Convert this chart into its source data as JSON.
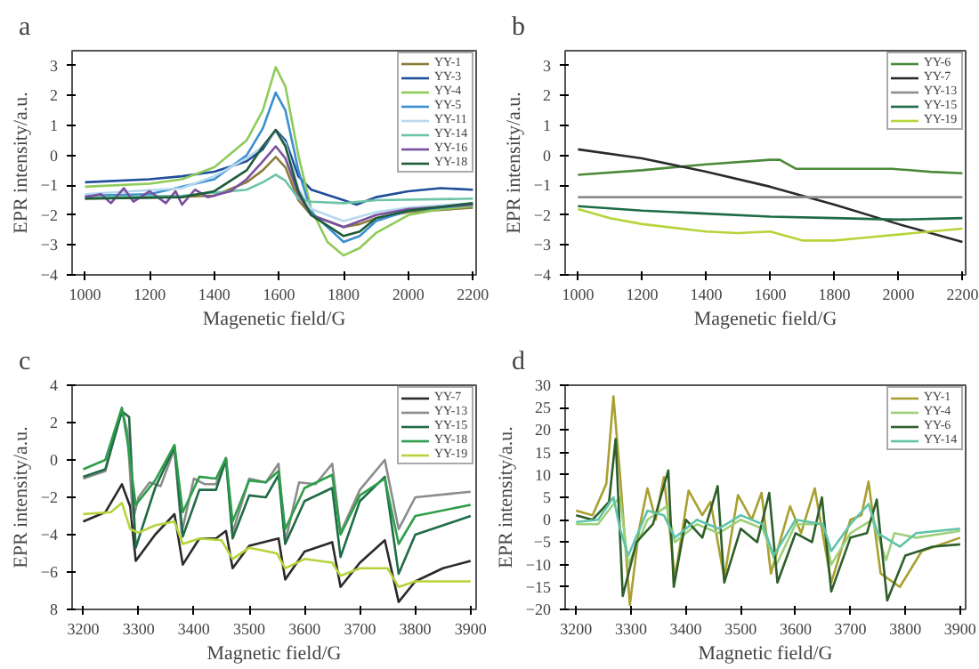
{
  "chart_data": [
    {
      "type": "line",
      "title": "a",
      "xlabel": "Magenetic field/G",
      "ylabel": "EPR intensity/a.u.",
      "xlim": [
        960,
        2210
      ],
      "xticks": [
        1000,
        1200,
        1400,
        1600,
        1800,
        2000,
        2200
      ],
      "ylim": [
        -4,
        3.5
      ],
      "yticks": [
        -4,
        -3,
        -2,
        -1,
        0,
        1,
        2,
        3
      ],
      "grid": false,
      "legend": "top right",
      "series": [
        {
          "name": "YY-1",
          "color": "#8b7d3a",
          "x": [
            1000,
            1200,
            1400,
            1500,
            1550,
            1590,
            1620,
            1660,
            1700,
            1800,
            1850,
            1900,
            2000,
            2200
          ],
          "values": [
            -1.45,
            -1.42,
            -1.35,
            -0.9,
            -0.5,
            -0.05,
            -0.4,
            -1.5,
            -2.0,
            -2.4,
            -2.3,
            -2.1,
            -1.9,
            -1.75
          ]
        },
        {
          "name": "YY-3",
          "color": "#1f4e9a",
          "x": [
            1000,
            1200,
            1300,
            1400,
            1500,
            1550,
            1590,
            1620,
            1660,
            1700,
            1800,
            1840,
            1900,
            2000,
            2100,
            2200
          ],
          "values": [
            -0.9,
            -0.8,
            -0.7,
            -0.55,
            -0.2,
            0.2,
            0.85,
            0.5,
            -0.7,
            -1.15,
            -1.5,
            -1.65,
            -1.4,
            -1.2,
            -1.1,
            -1.15
          ]
        },
        {
          "name": "YY-4",
          "color": "#8fca5a",
          "x": [
            1000,
            1200,
            1300,
            1400,
            1500,
            1550,
            1590,
            1620,
            1660,
            1700,
            1750,
            1800,
            1850,
            1900,
            2000,
            2100,
            2200
          ],
          "values": [
            -1.05,
            -0.95,
            -0.8,
            -0.4,
            0.5,
            1.5,
            2.95,
            2.3,
            0,
            -1.8,
            -2.9,
            -3.35,
            -3.1,
            -2.6,
            -2.0,
            -1.8,
            -1.7
          ]
        },
        {
          "name": "YY-5",
          "color": "#3a8fcf",
          "x": [
            1000,
            1200,
            1400,
            1500,
            1550,
            1590,
            1620,
            1660,
            1700,
            1800,
            1850,
            1900,
            2000,
            2200
          ],
          "values": [
            -1.35,
            -1.3,
            -0.8,
            0,
            0.9,
            2.1,
            1.5,
            -0.5,
            -1.9,
            -2.9,
            -2.7,
            -2.2,
            -1.85,
            -1.65
          ]
        },
        {
          "name": "YY-11",
          "color": "#b8d8ef",
          "x": [
            1000,
            1300,
            1400,
            1500,
            1550,
            1590,
            1620,
            1660,
            1700,
            1800,
            1900,
            2000,
            2200
          ],
          "values": [
            -1.3,
            -1.1,
            -0.7,
            -0.1,
            0.3,
            0.8,
            0.4,
            -1.1,
            -1.8,
            -2.2,
            -1.9,
            -1.75,
            -1.6
          ]
        },
        {
          "name": "YY-14",
          "color": "#6cc3a8",
          "x": [
            1000,
            1300,
            1500,
            1550,
            1590,
            1620,
            1660,
            1700,
            1800,
            1900,
            2200
          ],
          "values": [
            -1.4,
            -1.35,
            -1.15,
            -0.9,
            -0.65,
            -0.85,
            -1.45,
            -1.55,
            -1.6,
            -1.5,
            -1.45
          ]
        },
        {
          "name": "YY-16",
          "color": "#7b4fa0",
          "x": [
            1000,
            1050,
            1080,
            1120,
            1150,
            1200,
            1250,
            1280,
            1300,
            1340,
            1380,
            1450,
            1500,
            1550,
            1590,
            1620,
            1660,
            1700,
            1800,
            1900,
            2000,
            2200
          ],
          "values": [
            -1.4,
            -1.3,
            -1.6,
            -1.1,
            -1.55,
            -1.2,
            -1.6,
            -1.2,
            -1.65,
            -1.15,
            -1.4,
            -1.2,
            -0.8,
            -0.2,
            0.3,
            -0.1,
            -1.3,
            -2.0,
            -2.4,
            -2.0,
            -1.8,
            -1.65
          ]
        },
        {
          "name": "YY-18",
          "color": "#1e5c3a",
          "x": [
            1000,
            1300,
            1400,
            1500,
            1550,
            1590,
            1620,
            1660,
            1700,
            1800,
            1850,
            1900,
            2000,
            2200
          ],
          "values": [
            -1.45,
            -1.4,
            -1.2,
            -0.5,
            0.3,
            0.85,
            0.3,
            -1.2,
            -2.0,
            -2.7,
            -2.55,
            -2.1,
            -1.85,
            -1.6
          ]
        }
      ]
    },
    {
      "type": "line",
      "title": "b",
      "xlabel": "Magenetic field/G",
      "ylabel": "EPR intensity/a.u.",
      "xlim": [
        960,
        2210
      ],
      "xticks": [
        1000,
        1200,
        1400,
        1600,
        1800,
        2000,
        2200
      ],
      "ylim": [
        -4,
        3.5
      ],
      "yticks": [
        -4,
        -3,
        -2,
        -1,
        0,
        1,
        2,
        3
      ],
      "grid": false,
      "legend": "top right",
      "series": [
        {
          "name": "YY-6",
          "color": "#4a8a3a",
          "x": [
            1000,
            1200,
            1400,
            1600,
            1630,
            1680,
            1800,
            1980,
            2100,
            2200
          ],
          "values": [
            -0.65,
            -0.5,
            -0.3,
            -0.15,
            -0.15,
            -0.45,
            -0.45,
            -0.45,
            -0.55,
            -0.6
          ]
        },
        {
          "name": "YY-7",
          "color": "#2a2a2a",
          "x": [
            1000,
            1200,
            1400,
            1600,
            1800,
            2000,
            2200
          ],
          "values": [
            0.2,
            -0.1,
            -0.55,
            -1.05,
            -1.65,
            -2.3,
            -2.9
          ]
        },
        {
          "name": "YY-13",
          "color": "#8c8c8c",
          "x": [
            1000,
            1600,
            2200
          ],
          "values": [
            -1.4,
            -1.4,
            -1.4
          ]
        },
        {
          "name": "YY-15",
          "color": "#1e6b45",
          "x": [
            1000,
            1200,
            1400,
            1600,
            1800,
            2000,
            2200
          ],
          "values": [
            -1.7,
            -1.85,
            -1.95,
            -2.05,
            -2.1,
            -2.15,
            -2.1
          ]
        },
        {
          "name": "YY-19",
          "color": "#b5d43a",
          "x": [
            1000,
            1100,
            1200,
            1400,
            1500,
            1600,
            1650,
            1700,
            1800,
            1900,
            2000,
            2100,
            2200
          ],
          "values": [
            -1.8,
            -2.1,
            -2.3,
            -2.55,
            -2.6,
            -2.55,
            -2.7,
            -2.85,
            -2.85,
            -2.75,
            -2.65,
            -2.55,
            -2.45
          ]
        }
      ]
    },
    {
      "type": "line",
      "title": "c",
      "xlabel": "Magnetic field/G",
      "ylabel": "EPR intensity/a.u.",
      "xlim": [
        3180,
        3910
      ],
      "xticks": [
        3200,
        3300,
        3400,
        3500,
        3600,
        3700,
        3800,
        3900
      ],
      "ylim": [
        -8,
        4
      ],
      "yticks": [
        {
          "value": -8,
          "label": "8"
        },
        -6,
        -4,
        -2,
        0,
        2,
        4
      ],
      "grid": false,
      "legend": "top right",
      "series": [
        {
          "name": "YY-7",
          "color": "#2a2a2a",
          "x": [
            3200,
            3240,
            3270,
            3285,
            3295,
            3330,
            3365,
            3380,
            3410,
            3440,
            3458,
            3470,
            3500,
            3540,
            3553,
            3565,
            3600,
            3650,
            3665,
            3700,
            3745,
            3770,
            3800,
            3850,
            3900
          ],
          "values": [
            -3.3,
            -2.8,
            -1.3,
            -2.5,
            -5.4,
            -4.0,
            -2.9,
            -5.6,
            -4.2,
            -4.2,
            -3.8,
            -5.8,
            -4.6,
            -4.3,
            -4.2,
            -6.4,
            -4.9,
            -4.4,
            -6.8,
            -5.5,
            -4.3,
            -7.6,
            -6.5,
            -5.8,
            -5.4
          ]
        },
        {
          "name": "YY-13",
          "color": "#8c8c8c",
          "x": [
            3200,
            3240,
            3270,
            3280,
            3290,
            3300,
            3320,
            3340,
            3365,
            3378,
            3400,
            3420,
            3440,
            3458,
            3470,
            3500,
            3530,
            3553,
            3565,
            3590,
            3620,
            3650,
            3665,
            3700,
            3745,
            3770,
            3800,
            3900
          ],
          "values": [
            -1.0,
            -0.6,
            2.7,
            1.5,
            -3.2,
            -2.0,
            -1.2,
            -1.4,
            0.6,
            -3.9,
            -1.0,
            -1.3,
            -1.3,
            0.1,
            -3.9,
            -1.0,
            -1.2,
            -0.2,
            -4.4,
            -1.2,
            -1.3,
            -0.2,
            -3.9,
            -1.6,
            0.0,
            -3.7,
            -2.0,
            -1.7
          ]
        },
        {
          "name": "YY-15",
          "color": "#1e6b45",
          "x": [
            3200,
            3240,
            3270,
            3283,
            3295,
            3330,
            3365,
            3380,
            3410,
            3440,
            3458,
            3470,
            3500,
            3530,
            3553,
            3565,
            3600,
            3650,
            3665,
            3700,
            3745,
            3770,
            3800,
            3900
          ],
          "values": [
            -0.9,
            -0.5,
            2.6,
            2.3,
            -4.7,
            -1.5,
            0.7,
            -4.1,
            -1.6,
            -1.6,
            0.0,
            -4.2,
            -1.9,
            -2.0,
            -0.8,
            -4.5,
            -2.2,
            -1.5,
            -5.2,
            -2.2,
            -0.9,
            -6.1,
            -4.0,
            -3.0
          ]
        },
        {
          "name": "YY-18",
          "color": "#2e9e4a",
          "x": [
            3200,
            3240,
            3270,
            3280,
            3295,
            3330,
            3365,
            3380,
            3410,
            3440,
            3458,
            3470,
            3500,
            3530,
            3553,
            3565,
            3600,
            3650,
            3665,
            3700,
            3745,
            3770,
            3800,
            3900
          ],
          "values": [
            -0.5,
            0.0,
            2.8,
            1.0,
            -2.4,
            -1.1,
            0.8,
            -2.8,
            -0.9,
            -1.0,
            0.1,
            -3.3,
            -1.1,
            -1.2,
            -0.6,
            -3.7,
            -1.5,
            -0.8,
            -4.0,
            -1.9,
            -1.0,
            -4.5,
            -3.0,
            -2.4
          ]
        },
        {
          "name": "YY-19",
          "color": "#b5d43a",
          "x": [
            3200,
            3250,
            3270,
            3285,
            3300,
            3330,
            3365,
            3380,
            3410,
            3450,
            3470,
            3500,
            3550,
            3565,
            3600,
            3650,
            3665,
            3700,
            3750,
            3770,
            3800,
            3900
          ],
          "values": [
            -2.9,
            -2.8,
            -2.3,
            -3.7,
            -3.9,
            -3.5,
            -3.3,
            -4.5,
            -4.2,
            -4.3,
            -5.3,
            -4.7,
            -5.0,
            -5.8,
            -5.3,
            -5.5,
            -6.2,
            -5.8,
            -5.8,
            -6.8,
            -6.5,
            -6.5
          ]
        }
      ]
    },
    {
      "type": "line",
      "title": "d",
      "xlabel": "Magnetic field/G",
      "ylabel": "EPR intensity/a.u.",
      "xlim": [
        3180,
        3910
      ],
      "xticks": [
        3200,
        3300,
        3400,
        3500,
        3600,
        3700,
        3800,
        3900
      ],
      "ylim": [
        -20,
        30
      ],
      "yticks": [
        -20,
        -15,
        -10,
        -5,
        0,
        5,
        10,
        15,
        20,
        25,
        30
      ],
      "grid": false,
      "legend": "top right",
      "series": [
        {
          "name": "YY-1",
          "color": "#a8a030",
          "x": [
            3200,
            3230,
            3255,
            3268,
            3280,
            3298,
            3315,
            3330,
            3345,
            3360,
            3380,
            3405,
            3430,
            3445,
            3470,
            3495,
            3520,
            3538,
            3555,
            3590,
            3610,
            3635,
            3665,
            3700,
            3720,
            3733,
            3755,
            3790,
            3830,
            3900
          ],
          "values": [
            2,
            1,
            8,
            27.5,
            10,
            -19,
            -2,
            7,
            0,
            9.5,
            -13,
            6.5,
            1,
            4,
            -13,
            5.5,
            0,
            6,
            -12,
            3,
            -3,
            7,
            -14,
            0,
            1,
            8.5,
            -12,
            -15,
            -7,
            -4
          ]
        },
        {
          "name": "YY-4",
          "color": "#9ed07a",
          "x": [
            3200,
            3240,
            3265,
            3280,
            3295,
            3330,
            3365,
            3380,
            3420,
            3460,
            3500,
            3540,
            3565,
            3600,
            3650,
            3665,
            3700,
            3740,
            3765,
            3780,
            3820,
            3900
          ],
          "values": [
            -1,
            -1,
            3,
            5,
            -10,
            0,
            3,
            -5,
            -1,
            -3,
            0,
            -2,
            -10,
            -1,
            -1,
            -10,
            -3,
            0,
            -9,
            -3,
            -4,
            -2.5
          ]
        },
        {
          "name": "YY-6",
          "color": "#2e5e2a",
          "x": [
            3200,
            3230,
            3260,
            3272,
            3285,
            3310,
            3340,
            3368,
            3378,
            3400,
            3430,
            3458,
            3470,
            3500,
            3530,
            3552,
            3567,
            3600,
            3630,
            3648,
            3665,
            3700,
            3730,
            3748,
            3767,
            3800,
            3850,
            3900
          ],
          "values": [
            1,
            0,
            4,
            18,
            -17,
            -5,
            -1,
            11,
            -15,
            0,
            -4,
            7.5,
            -14,
            -2,
            -5,
            6,
            -14,
            -3,
            -5,
            5,
            -16,
            -4,
            -3,
            4.5,
            -18,
            -8,
            -6,
            -5.5
          ]
        },
        {
          "name": "YY-14",
          "color": "#5fc4a8",
          "x": [
            3200,
            3240,
            3268,
            3280,
            3295,
            3330,
            3360,
            3380,
            3420,
            3460,
            3500,
            3540,
            3560,
            3600,
            3650,
            3665,
            3700,
            3733,
            3750,
            3790,
            3820,
            3900
          ],
          "values": [
            -0.5,
            0,
            5,
            -2,
            -8,
            2,
            1,
            -4,
            0,
            -2,
            1,
            -1,
            -8,
            0,
            -1,
            -7,
            -1,
            3.5,
            -3,
            -6,
            -3,
            -2
          ]
        }
      ]
    }
  ]
}
